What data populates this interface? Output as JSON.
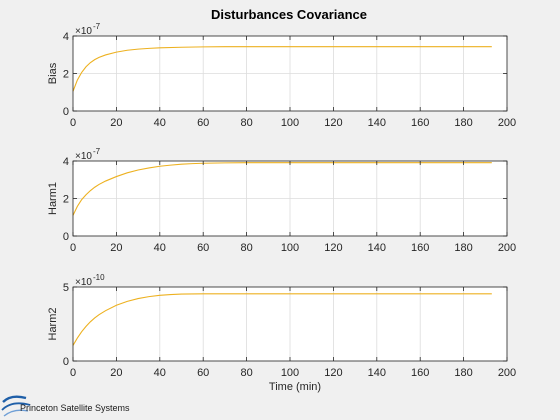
{
  "figure": {
    "title": "Disturbances Covariance",
    "logo_text": "Princeton Satellite Systems"
  },
  "colors": {
    "background": "#f0f0f0",
    "axes_background": "#ffffff",
    "axis": "#262626",
    "grid": "#dcdcdc",
    "series": "#edb120",
    "logo_blue": "#1f5fa8"
  },
  "chart_data": [
    {
      "type": "line",
      "ylabel": "Bias",
      "xlabel": "",
      "exponent_label": "×10",
      "exponent_value": "-7",
      "xlim": [
        0,
        200
      ],
      "ylim": [
        0,
        4
      ],
      "xticks": [
        "0",
        "20",
        "40",
        "60",
        "80",
        "100",
        "120",
        "140",
        "160",
        "180",
        "200"
      ],
      "yticks": [
        "0",
        "2",
        "4"
      ],
      "grid": true,
      "series": [
        {
          "x": [
            0,
            2,
            4,
            6,
            8,
            10,
            12,
            15,
            20,
            25,
            30,
            35,
            40,
            50,
            60,
            70,
            80,
            100,
            120,
            140,
            160,
            180,
            193
          ],
          "y": [
            1.05,
            1.65,
            2.06,
            2.36,
            2.58,
            2.74,
            2.86,
            2.99,
            3.14,
            3.24,
            3.3,
            3.34,
            3.37,
            3.4,
            3.42,
            3.43,
            3.43,
            3.43,
            3.43,
            3.43,
            3.43,
            3.43,
            3.43
          ]
        }
      ]
    },
    {
      "type": "line",
      "ylabel": "Harm1",
      "xlabel": "",
      "exponent_label": "×10",
      "exponent_value": "-7",
      "xlim": [
        0,
        200
      ],
      "ylim": [
        0,
        4
      ],
      "xticks": [
        "0",
        "20",
        "40",
        "60",
        "80",
        "100",
        "120",
        "140",
        "160",
        "180",
        "200"
      ],
      "yticks": [
        "0",
        "2",
        "4"
      ],
      "grid": true,
      "series": [
        {
          "x": [
            0,
            2,
            4,
            6,
            8,
            10,
            12,
            15,
            20,
            25,
            30,
            35,
            40,
            45,
            50,
            55,
            60,
            70,
            80,
            100,
            120,
            140,
            160,
            180,
            193
          ],
          "y": [
            1.1,
            1.58,
            1.94,
            2.2,
            2.42,
            2.6,
            2.75,
            2.93,
            3.17,
            3.37,
            3.52,
            3.63,
            3.72,
            3.78,
            3.83,
            3.86,
            3.88,
            3.9,
            3.91,
            3.91,
            3.91,
            3.91,
            3.91,
            3.91,
            3.91
          ]
        }
      ]
    },
    {
      "type": "line",
      "ylabel": "Harm2",
      "xlabel": "Time (min)",
      "exponent_label": "×10",
      "exponent_value": "-10",
      "xlim": [
        0,
        200
      ],
      "ylim": [
        0,
        5
      ],
      "xticks": [
        "0",
        "20",
        "40",
        "60",
        "80",
        "100",
        "120",
        "140",
        "160",
        "180",
        "200"
      ],
      "yticks": [
        "0",
        "5"
      ],
      "grid": true,
      "series": [
        {
          "x": [
            0,
            2,
            4,
            6,
            8,
            10,
            12,
            15,
            20,
            25,
            30,
            35,
            40,
            45,
            50,
            60,
            70,
            80,
            100,
            120,
            140,
            160,
            180,
            193
          ],
          "y": [
            1.05,
            1.55,
            1.98,
            2.34,
            2.65,
            2.91,
            3.13,
            3.4,
            3.77,
            4.03,
            4.22,
            4.35,
            4.44,
            4.49,
            4.52,
            4.54,
            4.54,
            4.54,
            4.54,
            4.54,
            4.54,
            4.54,
            4.54,
            4.54
          ]
        }
      ]
    }
  ]
}
